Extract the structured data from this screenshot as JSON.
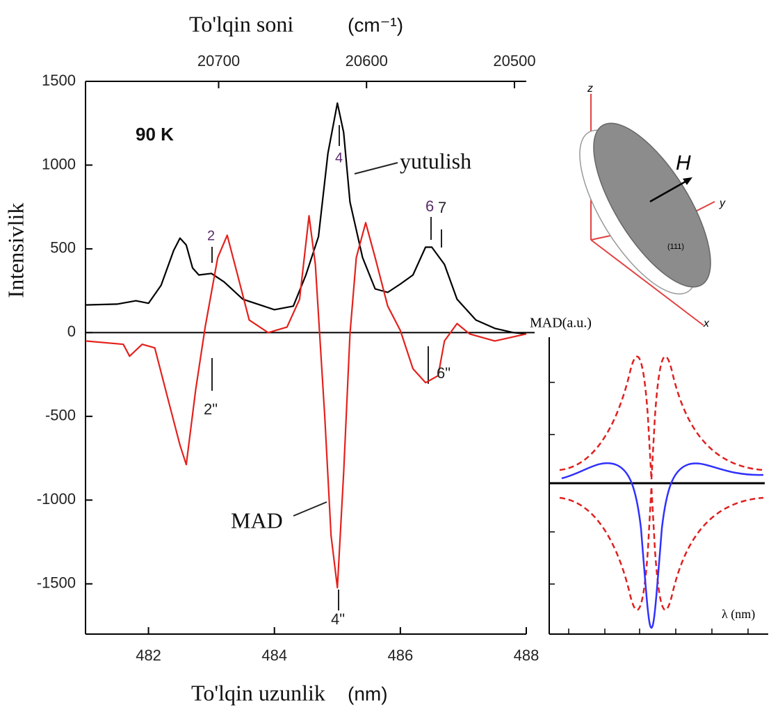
{
  "chart_data": {
    "type": "line",
    "xlabel": "To'lqin uzunlik",
    "xunit": "(nm)",
    "ylabel": "Intensivlik",
    "x2label": "To'lqin soni",
    "x2unit": "(cm⁻¹)",
    "xlim": [
      481,
      488
    ],
    "xticks": [
      482,
      484,
      486,
      488
    ],
    "ylim": [
      -1800,
      1500
    ],
    "yticks": [
      -1500,
      -1000,
      -500,
      0,
      500,
      1000,
      1500
    ],
    "x2lim": [
      20790,
      20492
    ],
    "x2ticks": [
      20700,
      20600,
      20500
    ],
    "series": [
      {
        "name": "yutulish",
        "color": "#000000",
        "x": [
          481.0,
          481.5,
          481.8,
          482.0,
          482.2,
          482.4,
          482.5,
          482.6,
          482.7,
          482.8,
          483.0,
          483.2,
          483.5,
          484.0,
          484.3,
          484.5,
          484.7,
          484.85,
          485.0,
          485.1,
          485.2,
          485.4,
          485.6,
          485.8,
          486.0,
          486.2,
          486.4,
          486.5,
          486.7,
          486.9,
          487.2,
          487.5,
          487.8,
          488.0
        ],
        "values": [
          165,
          170,
          190,
          175,
          282,
          490,
          564,
          523,
          386,
          344,
          353,
          303,
          199,
          137,
          158,
          344,
          573,
          1071,
          1370,
          1195,
          780,
          448,
          261,
          240,
          290,
          344,
          510,
          510,
          407,
          199,
          75,
          25,
          0,
          -8
        ]
      },
      {
        "name": "MAD",
        "color": "#e3211c",
        "x": [
          481.0,
          481.6,
          481.7,
          481.9,
          482.1,
          482.3,
          482.5,
          482.6,
          482.75,
          482.9,
          483.1,
          483.25,
          483.4,
          483.6,
          483.9,
          484.2,
          484.4,
          484.55,
          484.65,
          484.8,
          484.9,
          485.0,
          485.1,
          485.2,
          485.3,
          485.45,
          485.6,
          485.8,
          486.0,
          486.2,
          486.4,
          486.6,
          486.7,
          486.9,
          487.1,
          487.5,
          488.0
        ],
        "values": [
          -50,
          -70,
          -141,
          -70,
          -91,
          -382,
          -672,
          -788,
          -340,
          33,
          448,
          581,
          365,
          75,
          0,
          33,
          199,
          697,
          407,
          -506,
          -1212,
          -1523,
          -838,
          -8,
          448,
          656,
          448,
          158,
          12,
          -216,
          -299,
          -257,
          -50,
          54,
          -8,
          -50,
          -8
        ]
      }
    ],
    "annotations": [
      "90 K",
      "4",
      "yutulish",
      "2",
      "6",
      "7",
      "2\"",
      "6\"",
      "4\"",
      "MAD"
    ]
  },
  "inset_disk": {
    "labels": [
      "z",
      "y",
      "x",
      "H",
      "(111)"
    ]
  },
  "inset_mad": {
    "ylabel": "MAD(a.u.)",
    "xlabel": "λ (nm)"
  }
}
